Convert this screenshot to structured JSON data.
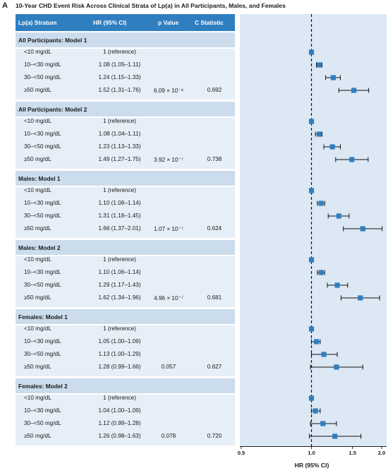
{
  "panel_letter": "A",
  "title": "10-Year CHD Event Risk Across Clinical Strata of Lp(a) in All Participants, Males, and Females",
  "table_header": {
    "stratum": "Lp(a) Stratum",
    "hr": "HR (95% CI)",
    "p": "p Value",
    "c": "C Statistic"
  },
  "colors": {
    "header": "#2f7fc0",
    "section": "#cbdcec",
    "body": "#e6eef7",
    "marker": "#2f7fc0",
    "plot_bg": "#dce8f4"
  },
  "chart_data": {
    "type": "forest",
    "xlabel": "HR (95% CI)",
    "xscale": "log",
    "xlim": [
      0.5,
      2.0
    ],
    "xticks": [
      0.5,
      1.0,
      1.5,
      2.0
    ],
    "xtick_labels": [
      "0.5",
      "1.0",
      "1.5",
      "2.0"
    ],
    "reference_line": 1.0,
    "sections": [
      {
        "title": "All Participants: Model 1",
        "rows": [
          {
            "stratum": "<10 mg/dL",
            "hr_text": "1 (reference)",
            "hr": 1.0,
            "lo": 1.0,
            "hi": 1.0,
            "p": "",
            "c": ""
          },
          {
            "stratum": "10–<30 mg/dL",
            "hr_text": "1.08 (1.05–1.11)",
            "hr": 1.08,
            "lo": 1.05,
            "hi": 1.11,
            "p": "",
            "c": ""
          },
          {
            "stratum": "30–<50 mg/dL",
            "hr_text": "1.24 (1.15–1.33)",
            "hr": 1.24,
            "lo": 1.15,
            "hi": 1.33,
            "p": "",
            "c": ""
          },
          {
            "stratum": "≥50 mg/dL",
            "hr_text": "1.52 (1.31–1.76)",
            "hr": 1.52,
            "lo": 1.31,
            "hi": 1.76,
            "p": "6.09 × 10⁻⁸",
            "c": "0.692"
          }
        ]
      },
      {
        "title": "All Participants: Model 2",
        "rows": [
          {
            "stratum": "<10 mg/dL",
            "hr_text": "1 (reference)",
            "hr": 1.0,
            "lo": 1.0,
            "hi": 1.0,
            "p": "",
            "c": ""
          },
          {
            "stratum": "10–<30 mg/dL",
            "hr_text": "1.08 (1.04–1.11)",
            "hr": 1.08,
            "lo": 1.04,
            "hi": 1.11,
            "p": "",
            "c": ""
          },
          {
            "stratum": "30–<50 mg/dL",
            "hr_text": "1.23 (1.13–1.33)",
            "hr": 1.23,
            "lo": 1.13,
            "hi": 1.33,
            "p": "",
            "c": ""
          },
          {
            "stratum": "≥50 mg/dL",
            "hr_text": "1.49 (1.27–1.75)",
            "hr": 1.49,
            "lo": 1.27,
            "hi": 1.75,
            "p": "3.92 × 10⁻⁷",
            "c": "0.738"
          }
        ]
      },
      {
        "title": "Males: Model 1",
        "rows": [
          {
            "stratum": "<10 mg/dL",
            "hr_text": "1 (reference)",
            "hr": 1.0,
            "lo": 1.0,
            "hi": 1.0,
            "p": "",
            "c": ""
          },
          {
            "stratum": "10–<30 mg/dL",
            "hr_text": "1.10 (1.06–1.14)",
            "hr": 1.1,
            "lo": 1.06,
            "hi": 1.14,
            "p": "",
            "c": ""
          },
          {
            "stratum": "30–<50 mg/dL",
            "hr_text": "1.31 (1.18–1.45)",
            "hr": 1.31,
            "lo": 1.18,
            "hi": 1.45,
            "p": "",
            "c": ""
          },
          {
            "stratum": "≥50 mg/dL",
            "hr_text": "1.66 (1.37–2.01)",
            "hr": 1.66,
            "lo": 1.37,
            "hi": 2.01,
            "p": "1.07 × 10⁻⁷",
            "c": "0.624"
          }
        ]
      },
      {
        "title": "Males: Model 2",
        "rows": [
          {
            "stratum": "<10 mg/dL",
            "hr_text": "1 (reference)",
            "hr": 1.0,
            "lo": 1.0,
            "hi": 1.0,
            "p": "",
            "c": ""
          },
          {
            "stratum": "10–<30 mg/dL",
            "hr_text": "1.10 (1.06–1.14)",
            "hr": 1.1,
            "lo": 1.06,
            "hi": 1.14,
            "p": "",
            "c": ""
          },
          {
            "stratum": "30–<50 mg/dL",
            "hr_text": "1.29 (1.17–1.43)",
            "hr": 1.29,
            "lo": 1.17,
            "hi": 1.43,
            "p": "",
            "c": ""
          },
          {
            "stratum": "≥50 mg/dL",
            "hr_text": "1.62 (1.34–1.96)",
            "hr": 1.62,
            "lo": 1.34,
            "hi": 1.96,
            "p": "4.96 × 10⁻⁷",
            "c": "0.681"
          }
        ]
      },
      {
        "title": "Females: Model 1",
        "rows": [
          {
            "stratum": "<10 mg/dL",
            "hr_text": "1 (reference)",
            "hr": 1.0,
            "lo": 1.0,
            "hi": 1.0,
            "p": "",
            "c": ""
          },
          {
            "stratum": "10–<30 mg/dL",
            "hr_text": "1.05 (1.00–1.09)",
            "hr": 1.05,
            "lo": 1.0,
            "hi": 1.09,
            "p": "",
            "c": ""
          },
          {
            "stratum": "30–<50 mg/dL",
            "hr_text": "1.13 (1.00–1.29)",
            "hr": 1.13,
            "lo": 1.0,
            "hi": 1.29,
            "p": "",
            "c": ""
          },
          {
            "stratum": "≥50 mg/dL",
            "hr_text": "1.28 (0.99–1.66)",
            "hr": 1.28,
            "lo": 0.99,
            "hi": 1.66,
            "p": "0.057",
            "c": "0.627"
          }
        ]
      },
      {
        "title": "Females: Model 2",
        "rows": [
          {
            "stratum": "<10 mg/dL",
            "hr_text": "1 (reference)",
            "hr": 1.0,
            "lo": 1.0,
            "hi": 1.0,
            "p": "",
            "c": ""
          },
          {
            "stratum": "10–<30 mg/dL",
            "hr_text": "1.04 (1.00–1.09)",
            "hr": 1.04,
            "lo": 1.0,
            "hi": 1.09,
            "p": "",
            "c": ""
          },
          {
            "stratum": "30–<50 mg/dL",
            "hr_text": "1.12 (0.99–1.28)",
            "hr": 1.12,
            "lo": 0.99,
            "hi": 1.28,
            "p": "",
            "c": ""
          },
          {
            "stratum": "≥50 mg/dL",
            "hr_text": "1.26 (0.98–1.63)",
            "hr": 1.26,
            "lo": 0.98,
            "hi": 1.63,
            "p": "0.078",
            "c": "0.720"
          }
        ]
      }
    ]
  }
}
